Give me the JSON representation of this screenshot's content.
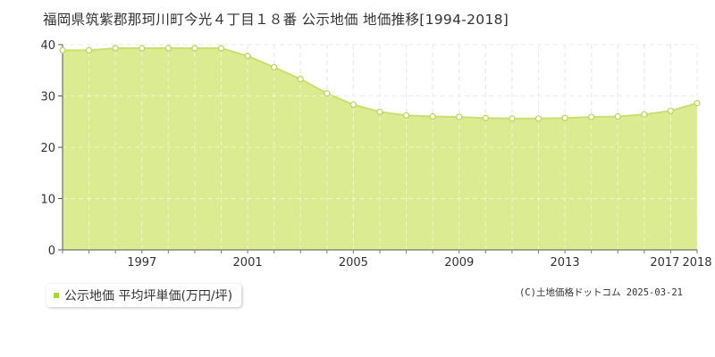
{
  "title": "福岡県筑紫郡那珂川町今光４丁目１８番 公示地価 地価推移[1994-2018]",
  "legend": {
    "label": "公示地価 平均坪単価(万円/坪)"
  },
  "credit": "(C)土地価格ドットコム 2025-03-21",
  "colors": {
    "area_fill": "#dbeb92",
    "line": "#c9df6e",
    "marker_fill": "#ffffff",
    "marker_stroke": "#b9d35a",
    "legend_swatch": "#a8d33a"
  },
  "chart_data": {
    "type": "area",
    "x": [
      1994,
      1995,
      1996,
      1997,
      1998,
      1999,
      2000,
      2001,
      2002,
      2003,
      2004,
      2005,
      2006,
      2007,
      2008,
      2009,
      2010,
      2011,
      2012,
      2013,
      2014,
      2015,
      2016,
      2017,
      2018
    ],
    "series": [
      {
        "name": "公示地価 平均坪単価(万円/坪)",
        "values": [
          38.9,
          38.9,
          39.3,
          39.3,
          39.3,
          39.3,
          39.3,
          37.8,
          35.6,
          33.3,
          30.5,
          28.3,
          26.9,
          26.2,
          26.0,
          25.9,
          25.7,
          25.6,
          25.6,
          25.7,
          25.9,
          26.0,
          26.4,
          27.1,
          28.6
        ]
      }
    ],
    "xlim": [
      1994,
      2018
    ],
    "ylim": [
      0,
      40
    ],
    "x_tick_labels": [
      "1997",
      "2001",
      "2005",
      "2009",
      "2013",
      "2017",
      "2018"
    ],
    "x_tick_values": [
      1997,
      2001,
      2005,
      2009,
      2013,
      2017,
      2018
    ],
    "y_tick_labels": [
      "0",
      "10",
      "20",
      "30",
      "40"
    ],
    "y_tick_values": [
      0,
      10,
      20,
      30,
      40
    ],
    "grid": true
  }
}
